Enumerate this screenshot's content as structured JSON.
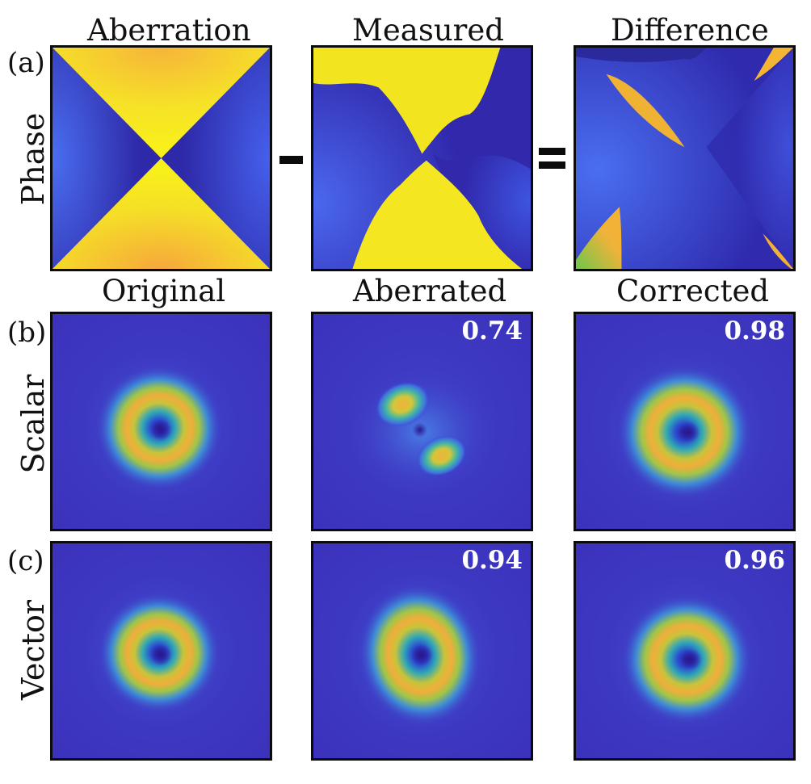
{
  "rows": {
    "a": {
      "label": "(a)",
      "side": "Phase"
    },
    "b": {
      "label": "(b)",
      "side": "Scalar"
    },
    "c": {
      "label": "(c)",
      "side": "Vector"
    }
  },
  "columns_a": {
    "c1": "Aberration",
    "c2": "Measured",
    "c3": "Difference"
  },
  "columns_bc": {
    "c1": "Original",
    "c2": "Aberrated",
    "c3": "Corrected"
  },
  "metrics": {
    "scalar_aberrated": "0.74",
    "scalar_corrected": "0.98",
    "vector_aberrated": "0.94",
    "vector_corrected": "0.96"
  },
  "colors": {
    "background_blue": "#3a30b8",
    "high_yellow": "#f4e623",
    "frame": "#0b0b0b"
  }
}
